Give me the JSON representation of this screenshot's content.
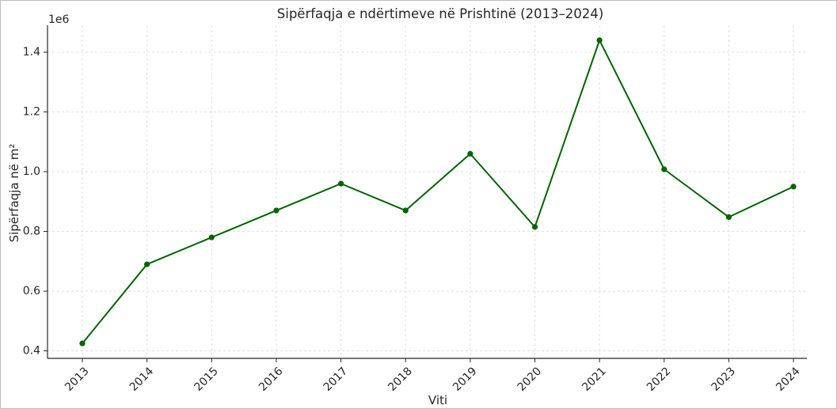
{
  "chart_data": {
    "type": "line",
    "title": "Sipërfaqja e ndërtimeve në Prishtinë (2013–2024)",
    "xlabel": "Viti",
    "ylabel": "Sipërfaqja në m²",
    "y_offset_label": "1e6",
    "categories": [
      "2013",
      "2014",
      "2015",
      "2016",
      "2017",
      "2018",
      "2019",
      "2020",
      "2021",
      "2022",
      "2023",
      "2024"
    ],
    "values": [
      425000,
      690000,
      780000,
      870000,
      960000,
      870000,
      1060000,
      815000,
      1440000,
      1008000,
      848000,
      950000
    ],
    "ylim": [
      0.375,
      1.49
    ],
    "y_scale": 1000000,
    "yticks": [
      "0.4",
      "0.6",
      "0.8",
      "1.0",
      "1.2",
      "1.4"
    ],
    "grid": true,
    "line_color": "#006400",
    "marker": "circle"
  }
}
